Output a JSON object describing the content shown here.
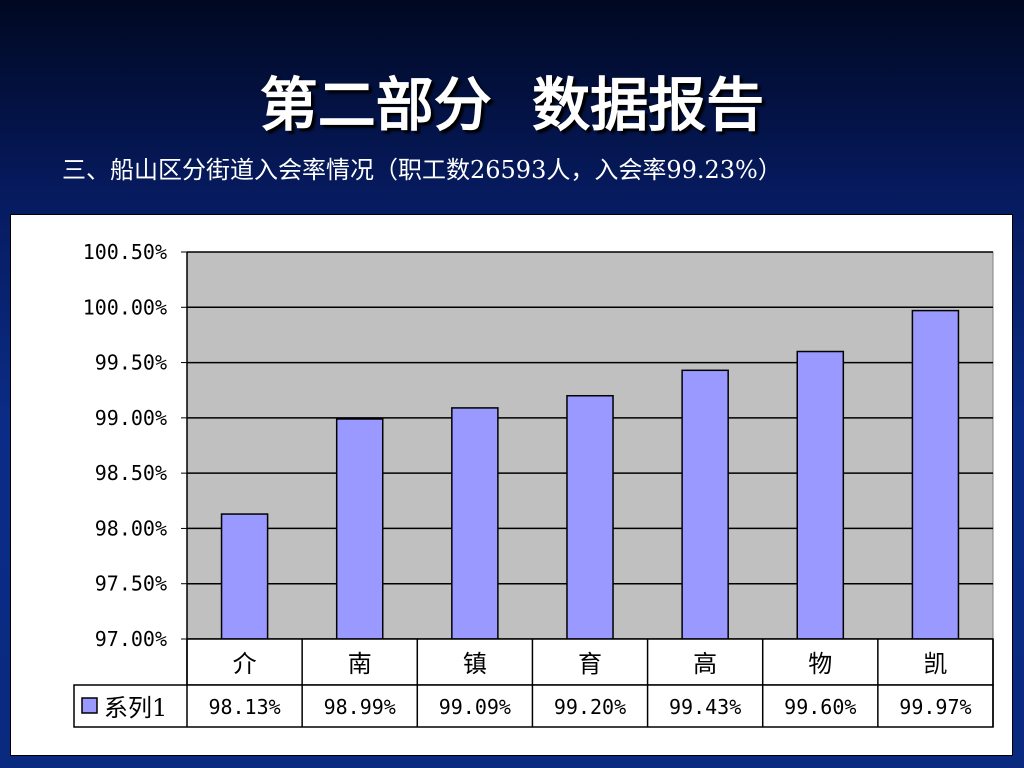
{
  "slide": {
    "title": "第二部分  数据报告",
    "subtitle": "三、船山区分街道入会率情况（职工数26593人，入会率99.23%）"
  },
  "colors": {
    "bar": "#9999ff",
    "plot_area": "#c0c0c0",
    "gridline": "#000000"
  },
  "chart_data": {
    "type": "bar",
    "title": "",
    "xlabel": "",
    "ylabel": "",
    "categories": [
      "介",
      "南",
      "镇",
      "育",
      "高",
      "物",
      "凯"
    ],
    "series": [
      {
        "name": "系列1",
        "values": [
          98.13,
          98.99,
          99.09,
          99.2,
          99.43,
          99.6,
          99.97
        ],
        "labels": [
          "98.13%",
          "98.99%",
          "99.09%",
          "99.20%",
          "99.43%",
          "99.60%",
          "99.97%"
        ]
      }
    ],
    "ylim": [
      97.0,
      100.5
    ],
    "yticks": [
      97.0,
      97.5,
      98.0,
      98.5,
      99.0,
      99.5,
      100.0,
      100.5
    ],
    "ytick_labels": [
      "97.00%",
      "97.50%",
      "98.00%",
      "98.50%",
      "99.00%",
      "99.50%",
      "100.00%",
      "100.50%"
    ],
    "grid": true,
    "legend": "data-table-left"
  }
}
